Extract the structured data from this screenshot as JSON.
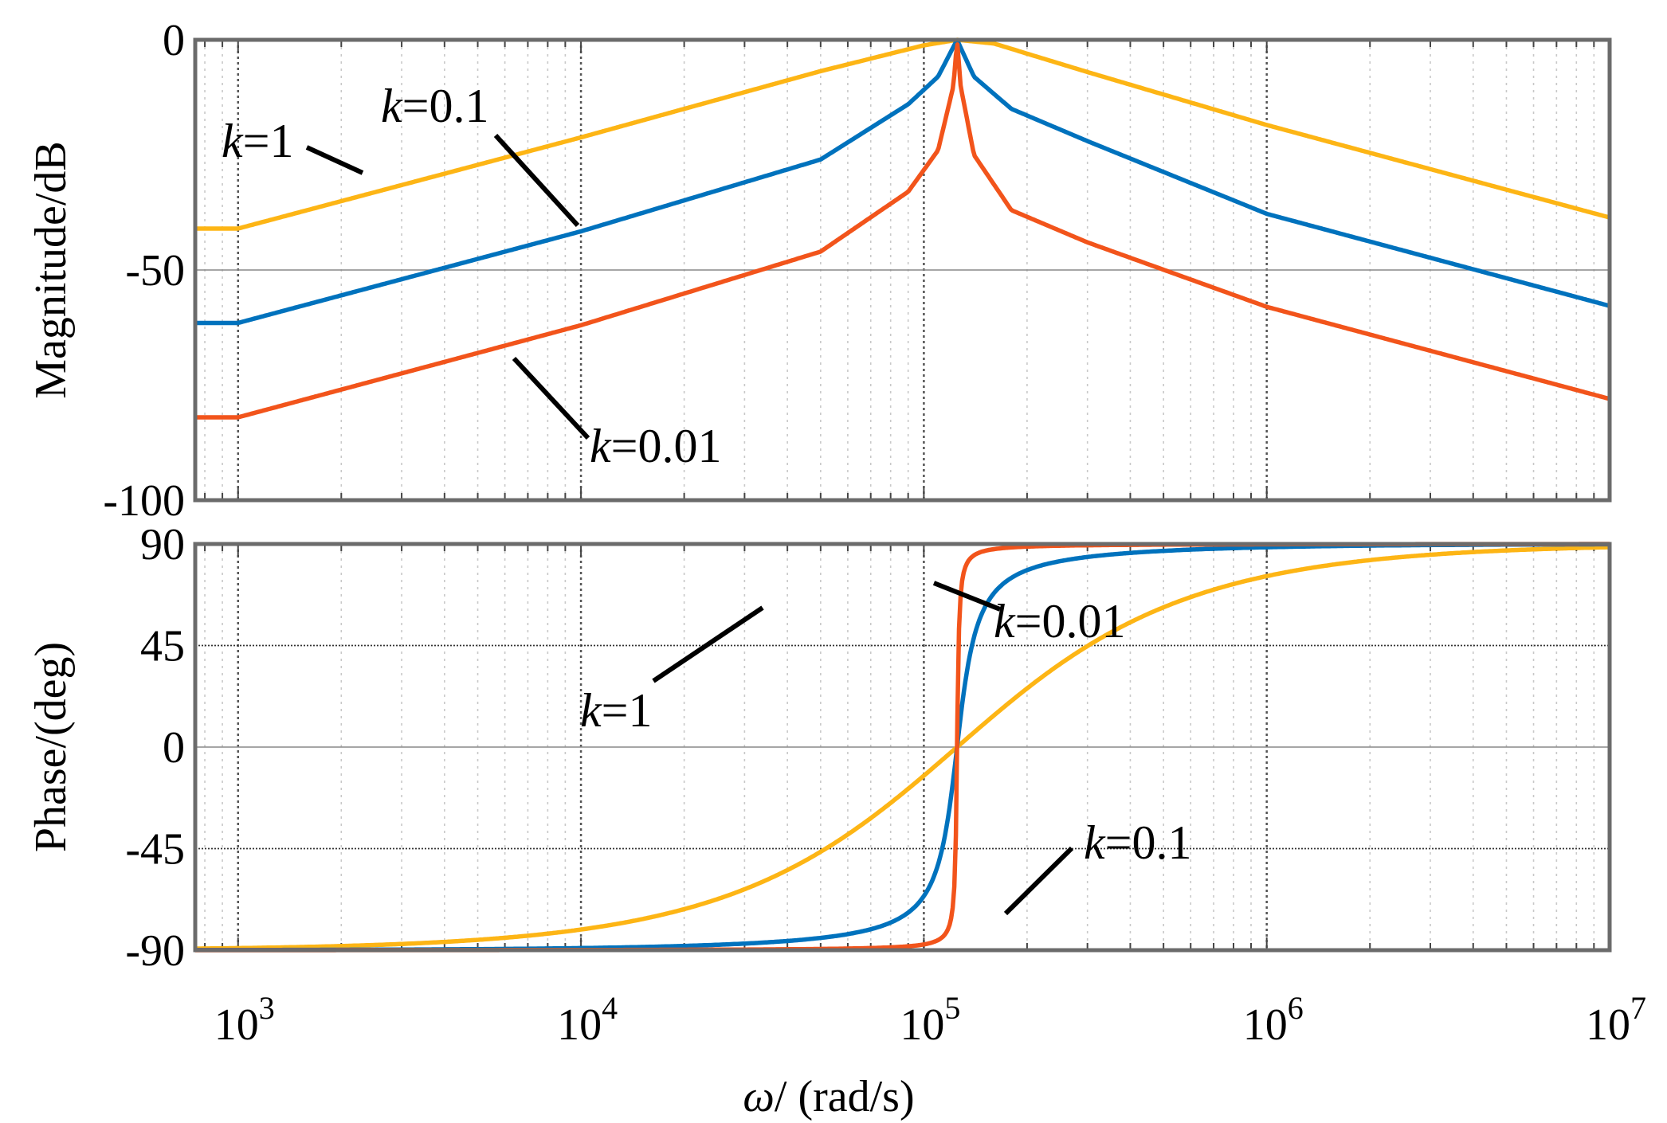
{
  "chart_data": {
    "type": "line",
    "subplots": [
      {
        "id": "magnitude",
        "ylabel": "Magnitude/dB",
        "ylim": [
          -100,
          0
        ],
        "yticks": [
          0,
          -50,
          -100
        ],
        "yticklabels": [
          "0",
          "-50",
          "-100"
        ],
        "series": [
          {
            "name": "k=1",
            "color": "#FDB515",
            "points": [
              [
                1000,
                -41
              ],
              [
                10000,
                -21.2
              ],
              [
                50000,
                -6.8
              ],
              [
                100000,
                -1.2
              ],
              [
                125000,
                0
              ],
              [
                160000,
                -0.8
              ],
              [
                300000,
                -7
              ],
              [
                1000000,
                -18.5
              ],
              [
                10000000,
                -38.6
              ]
            ]
          },
          {
            "name": "k=0.1",
            "color": "#0072BD",
            "points": [
              [
                1000,
                -61.5
              ],
              [
                10000,
                -41.6
              ],
              [
                50000,
                -26
              ],
              [
                90000,
                -14
              ],
              [
                110000,
                -8
              ],
              [
                125000,
                0
              ],
              [
                140000,
                -8
              ],
              [
                180000,
                -15
              ],
              [
                300000,
                -22
              ],
              [
                1000000,
                -37.8
              ],
              [
                10000000,
                -57.8
              ]
            ]
          },
          {
            "name": "k=0.01",
            "color": "#F2541B",
            "points": [
              [
                1000,
                -82
              ],
              [
                10000,
                -62
              ],
              [
                50000,
                -46
              ],
              [
                90000,
                -33
              ],
              [
                110000,
                -24
              ],
              [
                122000,
                -10
              ],
              [
                125000,
                0
              ],
              [
                128000,
                -10
              ],
              [
                140000,
                -25
              ],
              [
                180000,
                -37
              ],
              [
                300000,
                -44
              ],
              [
                1000000,
                -58
              ],
              [
                10000000,
                -78
              ]
            ]
          }
        ],
        "annotations": [
          {
            "label": "k=1",
            "k": "k",
            "rest": "=1"
          },
          {
            "label": "k=0.1",
            "k": "k",
            "rest": "=0.1"
          },
          {
            "label": "k=0.01",
            "k": "k",
            "rest": "=0.01"
          }
        ]
      },
      {
        "id": "phase",
        "ylabel": "Phase/(deg)",
        "ylim": [
          -90,
          90
        ],
        "yticks": [
          90,
          45,
          0,
          -45,
          -90
        ],
        "yticklabels": [
          "90",
          "45",
          "0",
          "-45",
          "-90"
        ],
        "series": [
          {
            "name": "k=1",
            "color": "#FDB515",
            "model": {
              "type": "phase",
              "wn": 125000,
              "k": 1
            }
          },
          {
            "name": "k=0.1",
            "color": "#0072BD",
            "model": {
              "type": "phase",
              "wn": 125000,
              "k": 0.1
            }
          },
          {
            "name": "k=0.01",
            "color": "#F2541B",
            "model": {
              "type": "phase",
              "wn": 125000,
              "k": 0.01
            }
          }
        ],
        "annotations": [
          {
            "label": "k=0.01",
            "k": "k",
            "rest": "=0.01"
          },
          {
            "label": "k=1",
            "k": "k",
            "rest": "=1"
          },
          {
            "label": "k=0.1",
            "k": "k",
            "rest": "=0.1"
          }
        ]
      }
    ],
    "xscale": "log",
    "xlim": [
      750,
      10000000
    ],
    "xticks": [
      {
        "base": "10",
        "exp": "3"
      },
      {
        "base": "10",
        "exp": "4"
      },
      {
        "base": "10",
        "exp": "5"
      },
      {
        "base": "10",
        "exp": "6"
      },
      {
        "base": "10",
        "exp": "7"
      }
    ],
    "xlabel": {
      "omega": "ω",
      "rest": "/ (rad/s)"
    },
    "grid": true
  }
}
